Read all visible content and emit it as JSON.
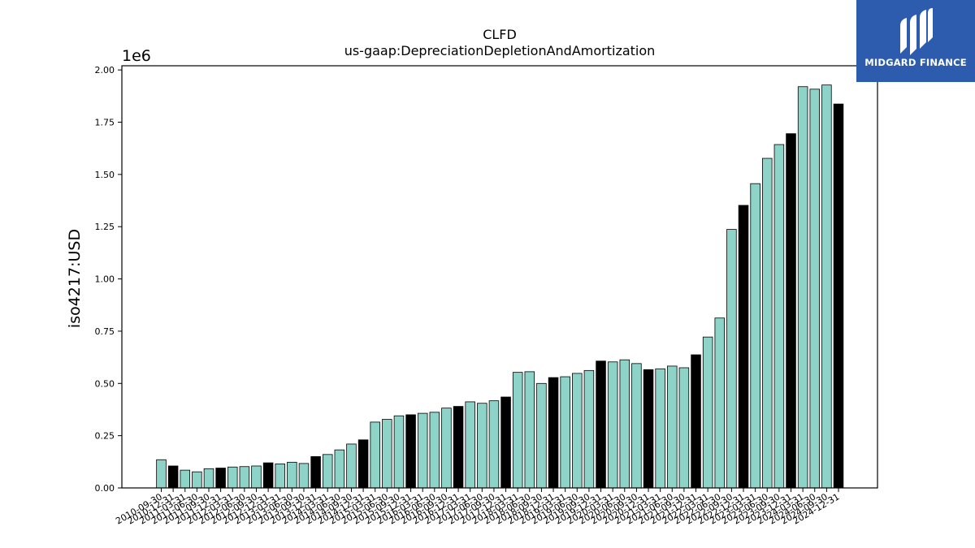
{
  "brand": {
    "name": "MIDGARD FINANCE",
    "bg_color": "#2d5caf"
  },
  "chart_data": {
    "type": "bar",
    "title": "CLFD",
    "subtitle": "us-gaap:DepreciationDepletionAndAmortization",
    "xlabel": "",
    "ylabel": "iso4217:USD",
    "y_multiplier_label": "1e6",
    "ylim": [
      0,
      2020000
    ],
    "y_ticks": [
      0,
      250000,
      500000,
      750000,
      1000000,
      1250000,
      1500000,
      1750000,
      2000000
    ],
    "y_tick_labels": [
      "0.00",
      "0.25",
      "0.50",
      "0.75",
      "1.00",
      "1.25",
      "1.50",
      "1.75",
      "2.00"
    ],
    "grid": false,
    "colors": {
      "quarter": "#8dd3c7",
      "fiscal_year_end": "#000000",
      "edge": "#000000"
    },
    "categories": [
      "2010-09-30",
      "2010-12-31",
      "2011-03-31",
      "2011-06-30",
      "2011-09-30",
      "2011-12-31",
      "2012-03-31",
      "2012-06-30",
      "2012-09-30",
      "2012-12-31",
      "2013-03-31",
      "2013-06-30",
      "2013-09-30",
      "2013-12-31",
      "2014-03-31",
      "2014-06-30",
      "2014-09-30",
      "2014-12-31",
      "2015-03-31",
      "2015-06-30",
      "2015-09-30",
      "2015-12-31",
      "2016-03-31",
      "2016-06-30",
      "2016-09-30",
      "2016-12-31",
      "2017-03-31",
      "2017-06-30",
      "2017-09-30",
      "2017-12-31",
      "2018-03-31",
      "2018-06-30",
      "2018-09-30",
      "2018-12-31",
      "2019-03-31",
      "2019-06-30",
      "2019-09-30",
      "2019-12-31",
      "2020-03-31",
      "2020-06-30",
      "2020-09-30",
      "2020-12-31",
      "2021-03-31",
      "2021-06-30",
      "2021-09-30",
      "2021-12-31",
      "2022-03-31",
      "2022-06-30",
      "2022-09-30",
      "2022-12-31",
      "2023-03-31",
      "2023-06-30",
      "2023-09-30",
      "2023-12-31",
      "2024-03-31",
      "2024-06-30",
      "2024-09-30",
      "2024-12-31"
    ],
    "values": [
      135000,
      105000,
      85000,
      77000,
      92000,
      95000,
      100000,
      102000,
      105000,
      120000,
      115000,
      123000,
      117000,
      150000,
      160000,
      182000,
      210000,
      230000,
      315000,
      328000,
      345000,
      350000,
      357000,
      362000,
      382000,
      390000,
      412000,
      405000,
      417000,
      435000,
      553000,
      556000,
      500000,
      528000,
      532000,
      548000,
      562000,
      607000,
      603000,
      613000,
      595000,
      566000,
      570000,
      583000,
      575000,
      637000,
      722000,
      813000,
      1237000,
      1352000,
      1456000,
      1577000,
      1643000,
      1695000,
      1920000,
      1908000,
      1928000,
      1837000
    ],
    "highlight_black": [
      false,
      true,
      false,
      false,
      false,
      true,
      false,
      false,
      false,
      true,
      false,
      false,
      false,
      true,
      false,
      false,
      false,
      true,
      false,
      false,
      false,
      true,
      false,
      false,
      false,
      true,
      false,
      false,
      false,
      true,
      false,
      false,
      false,
      true,
      false,
      false,
      false,
      true,
      false,
      false,
      false,
      true,
      false,
      false,
      false,
      true,
      false,
      false,
      false,
      true,
      false,
      false,
      false,
      true,
      false,
      false,
      false,
      true
    ]
  }
}
